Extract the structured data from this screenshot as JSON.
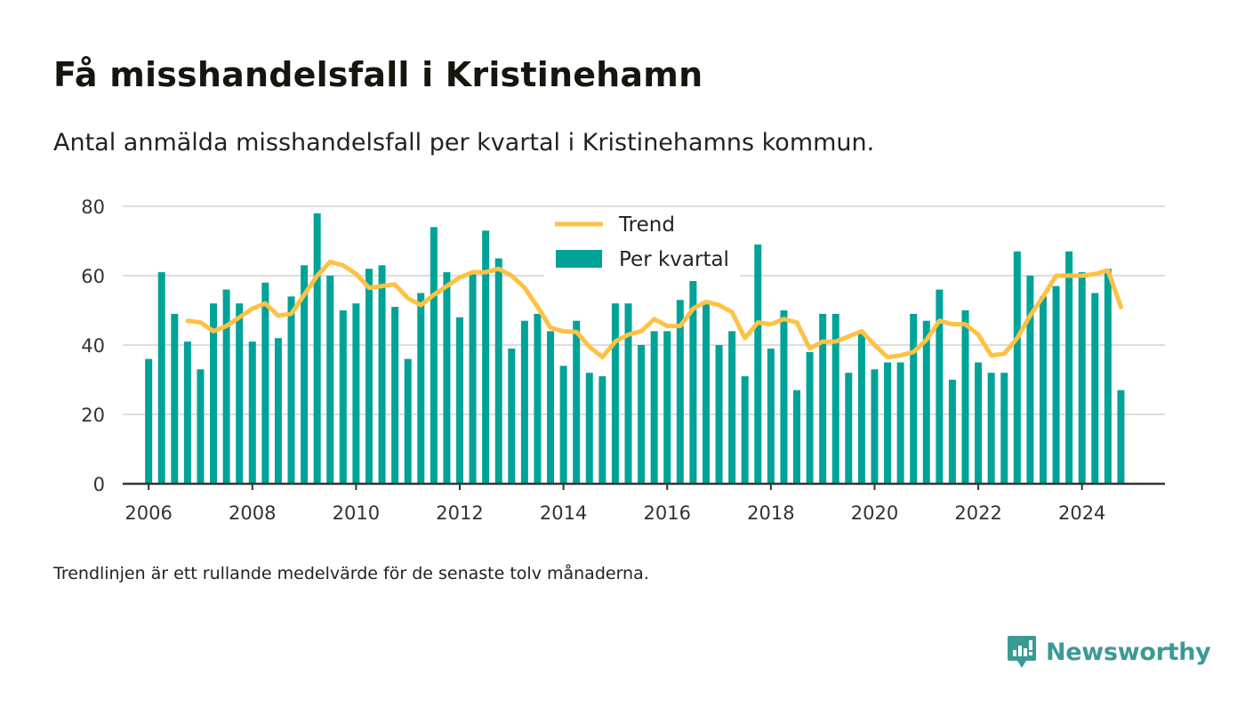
{
  "header": {
    "title": "Få misshandelsfall i Kristinehamn",
    "subtitle": "Antal anmälda misshandelsfall per kvartal i Kristinehamns kommun."
  },
  "footer": {
    "note": "Trendlinjen är ett rullande medelvärde för de senaste tolv månaderna.",
    "brand": "Newsworthy"
  },
  "colors": {
    "bars": "#00a398",
    "trend": "#ffc145",
    "grid": "#dddddd",
    "axis": "#333333",
    "brand": "#3a9b94"
  },
  "chart_data": {
    "type": "bar",
    "x_type": "time",
    "x_start": "2006 Q1",
    "period": "quarter",
    "xlim": [
      2005.5,
      2025.6
    ],
    "ylim": [
      0,
      80
    ],
    "yticks": [
      0,
      20,
      40,
      60,
      80
    ],
    "xticks": [
      "2006",
      "2008",
      "2010",
      "2012",
      "2014",
      "2016",
      "2018",
      "2020",
      "2022",
      "2024"
    ],
    "grid": true,
    "legend_position": "top-center",
    "series": [
      {
        "name": "Per kvartal",
        "kind": "bar",
        "values": [
          36,
          61,
          49,
          41,
          33,
          52,
          56,
          52,
          41,
          58,
          42,
          54,
          63,
          78,
          60,
          50,
          52,
          62,
          63,
          51,
          36,
          55,
          74,
          61,
          48,
          61,
          73,
          65,
          39,
          47,
          49,
          44,
          34,
          47,
          32,
          31,
          52,
          52,
          40,
          44,
          44,
          53,
          60,
          52,
          40,
          44,
          31,
          69,
          39,
          50,
          27,
          38,
          49,
          49,
          32,
          44,
          33,
          35,
          35,
          49,
          47,
          56,
          30,
          50,
          35,
          32,
          32,
          67,
          60,
          54,
          57,
          67,
          61,
          55,
          62,
          27
        ]
      },
      {
        "name": "Trend",
        "kind": "line",
        "start_index": 3,
        "values": [
          47,
          46.5,
          44,
          45.5,
          48,
          50.5,
          52,
          48.5,
          49,
          54.5,
          60,
          64,
          63,
          60.5,
          56.5,
          57,
          57.5,
          53.5,
          51.5,
          54.5,
          57,
          59.5,
          61,
          61,
          62,
          60,
          56.5,
          51,
          45,
          44,
          43.8,
          39.5,
          36.5,
          41,
          43,
          44,
          47.5,
          45.5,
          45.5,
          50.5,
          52.5,
          51.5,
          49.5,
          42,
          46.5,
          46,
          47.5,
          46.5,
          39,
          41,
          41,
          42.5,
          44,
          40,
          36.5,
          37,
          38,
          41.5,
          47,
          46,
          46,
          43,
          37,
          37.5,
          42,
          48.5,
          54,
          60,
          60,
          60,
          60.5,
          61.5,
          51
        ]
      }
    ]
  }
}
